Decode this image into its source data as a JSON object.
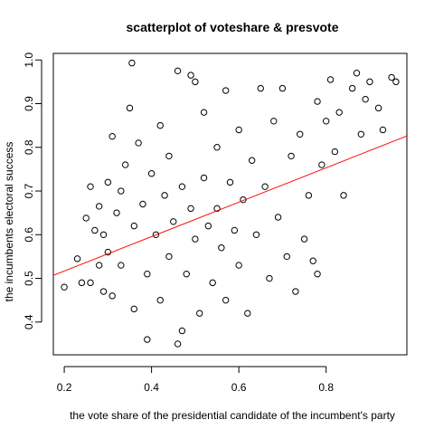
{
  "chart_data": {
    "type": "scatter",
    "title": "scatterplot of voteshare & presvote",
    "xlabel": "the vote share of the presidential candidate of the incumbent's party",
    "ylabel": "the incumbents electoral success",
    "xlim": [
      0.175,
      0.985
    ],
    "ylim": [
      0.325,
      1.015
    ],
    "x_ticks": [
      0.2,
      0.4,
      0.6,
      0.8
    ],
    "x_tick_labels": [
      "0.2",
      "0.4",
      "0.6",
      "0.8"
    ],
    "y_ticks": [
      0.4,
      0.5,
      0.6,
      0.7,
      0.8,
      0.9,
      1.0
    ],
    "y_tick_labels": [
      "0.4",
      "0.5",
      "0.6",
      "0.7",
      "0.8",
      "0.9",
      "1.0"
    ],
    "grid": false,
    "legend": "none",
    "point_color": "#000000",
    "regression_line": {
      "color": "#ff0000",
      "x": [
        0.175,
        0.985
      ],
      "y": [
        0.507,
        0.826
      ]
    },
    "points": [
      [
        0.2,
        0.48
      ],
      [
        0.23,
        0.545
      ],
      [
        0.24,
        0.49
      ],
      [
        0.25,
        0.638
      ],
      [
        0.26,
        0.49
      ],
      [
        0.26,
        0.71
      ],
      [
        0.27,
        0.61
      ],
      [
        0.28,
        0.665
      ],
      [
        0.28,
        0.53
      ],
      [
        0.29,
        0.47
      ],
      [
        0.29,
        0.6
      ],
      [
        0.3,
        0.56
      ],
      [
        0.3,
        0.72
      ],
      [
        0.31,
        0.825
      ],
      [
        0.31,
        0.46
      ],
      [
        0.32,
        0.65
      ],
      [
        0.33,
        0.7
      ],
      [
        0.33,
        0.53
      ],
      [
        0.34,
        0.76
      ],
      [
        0.35,
        0.89
      ],
      [
        0.355,
        0.993
      ],
      [
        0.36,
        0.43
      ],
      [
        0.36,
        0.62
      ],
      [
        0.37,
        0.81
      ],
      [
        0.38,
        0.67
      ],
      [
        0.39,
        0.51
      ],
      [
        0.39,
        0.36
      ],
      [
        0.4,
        0.74
      ],
      [
        0.41,
        0.6
      ],
      [
        0.42,
        0.85
      ],
      [
        0.42,
        0.45
      ],
      [
        0.43,
        0.69
      ],
      [
        0.44,
        0.55
      ],
      [
        0.44,
        0.78
      ],
      [
        0.45,
        0.63
      ],
      [
        0.46,
        0.35
      ],
      [
        0.46,
        0.975
      ],
      [
        0.47,
        0.38
      ],
      [
        0.47,
        0.71
      ],
      [
        0.48,
        0.51
      ],
      [
        0.49,
        0.965
      ],
      [
        0.49,
        0.66
      ],
      [
        0.5,
        0.95
      ],
      [
        0.5,
        0.59
      ],
      [
        0.51,
        0.42
      ],
      [
        0.52,
        0.88
      ],
      [
        0.52,
        0.73
      ],
      [
        0.53,
        0.62
      ],
      [
        0.54,
        0.49
      ],
      [
        0.55,
        0.8
      ],
      [
        0.55,
        0.66
      ],
      [
        0.56,
        0.57
      ],
      [
        0.57,
        0.93
      ],
      [
        0.57,
        0.45
      ],
      [
        0.58,
        0.72
      ],
      [
        0.59,
        0.61
      ],
      [
        0.6,
        0.84
      ],
      [
        0.6,
        0.53
      ],
      [
        0.61,
        0.68
      ],
      [
        0.62,
        0.42
      ],
      [
        0.63,
        0.77
      ],
      [
        0.64,
        0.6
      ],
      [
        0.65,
        0.935
      ],
      [
        0.66,
        0.71
      ],
      [
        0.67,
        0.5
      ],
      [
        0.68,
        0.86
      ],
      [
        0.69,
        0.64
      ],
      [
        0.7,
        0.935
      ],
      [
        0.71,
        0.55
      ],
      [
        0.72,
        0.78
      ],
      [
        0.73,
        0.47
      ],
      [
        0.74,
        0.83
      ],
      [
        0.75,
        0.59
      ],
      [
        0.76,
        0.69
      ],
      [
        0.77,
        0.54
      ],
      [
        0.78,
        0.905
      ],
      [
        0.78,
        0.51
      ],
      [
        0.79,
        0.76
      ],
      [
        0.8,
        0.86
      ],
      [
        0.81,
        0.955
      ],
      [
        0.82,
        0.79
      ],
      [
        0.83,
        0.88
      ],
      [
        0.84,
        0.69
      ],
      [
        0.86,
        0.935
      ],
      [
        0.87,
        0.97
      ],
      [
        0.88,
        0.83
      ],
      [
        0.89,
        0.91
      ],
      [
        0.9,
        0.95
      ],
      [
        0.92,
        0.89
      ],
      [
        0.93,
        0.84
      ],
      [
        0.95,
        0.96
      ],
      [
        0.96,
        0.95
      ]
    ]
  }
}
